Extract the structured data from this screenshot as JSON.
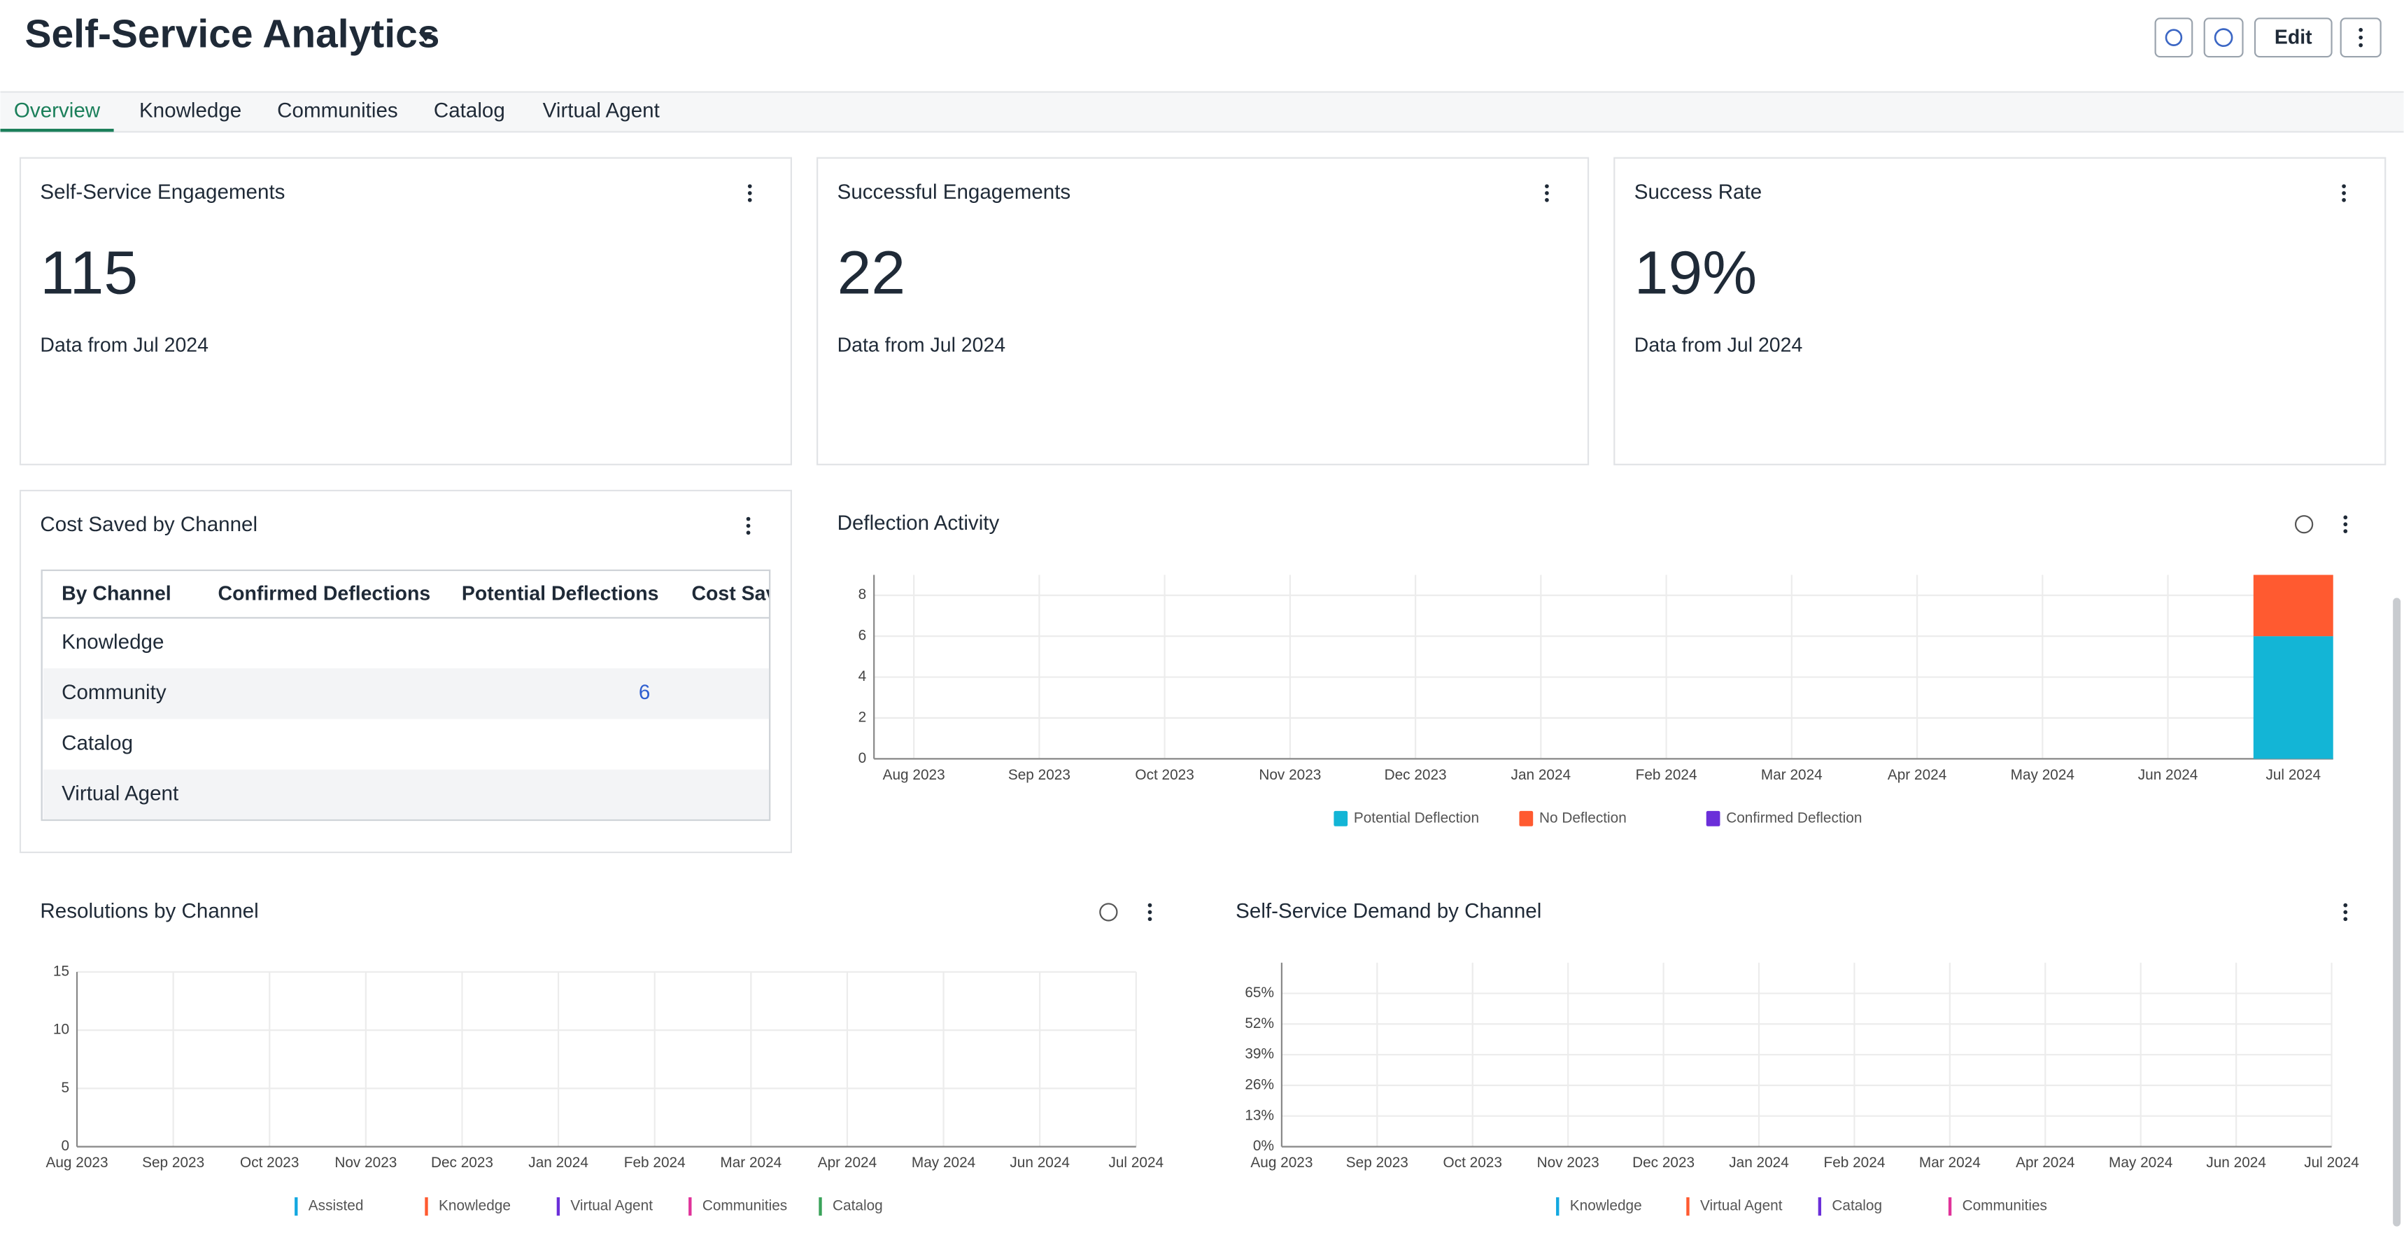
{
  "header": {
    "title": "Self-Service Analytics",
    "edit": "Edit"
  },
  "tabs": [
    "Overview",
    "Knowledge",
    "Communities",
    "Catalog",
    "Virtual Agent"
  ],
  "kpis": [
    {
      "title": "Self-Service Engagements",
      "value": 115,
      "note": "Data from Jul 2024"
    },
    {
      "title": "Successful Engagements",
      "value": 22,
      "note": "Data from Jul 2024"
    },
    {
      "title": "Success Rate",
      "value": 19,
      "value_label": "19%",
      "note": "Data from Jul 2024"
    }
  ],
  "cost_table": {
    "title": "Cost Saved by Channel",
    "columns": [
      "By Channel",
      "Confirmed Deflections",
      "Potential Deflections",
      "Cost Saved"
    ],
    "rows": [
      {
        "channel": "Knowledge"
      },
      {
        "channel": "Community",
        "potential": 6
      },
      {
        "channel": "Catalog"
      },
      {
        "channel": "Virtual Agent"
      }
    ]
  },
  "deflection_chart": {
    "type": "bar",
    "title": "Deflection Activity",
    "stacked": true,
    "categories": [
      "Aug 2023",
      "Sep 2023",
      "Oct 2023",
      "Nov 2023",
      "Dec 2023",
      "Jan 2024",
      "Feb 2024",
      "Mar 2024",
      "Apr 2024",
      "May 2024",
      "Jun 2024",
      "Jul 2024"
    ],
    "series": [
      {
        "name": "Potential Deflection",
        "color": "#13b5d6",
        "values": [
          0,
          0,
          0,
          0,
          0,
          0,
          0,
          0,
          0,
          0,
          0,
          6
        ]
      },
      {
        "name": "No Deflection",
        "color": "#ff5a30",
        "values": [
          0,
          0,
          0,
          0,
          0,
          0,
          0,
          0,
          0,
          0,
          0,
          3
        ]
      },
      {
        "name": "Confirmed Deflection",
        "color": "#6b2fd9",
        "values": [
          0,
          0,
          0,
          0,
          0,
          0,
          0,
          0,
          0,
          0,
          0,
          0
        ]
      }
    ],
    "ylim": [
      0,
      9
    ],
    "yticks": [
      0,
      2,
      4,
      6,
      8
    ],
    "grid": true
  },
  "resolutions_chart": {
    "type": "line",
    "title": "Resolutions by Channel",
    "categories": [
      "Aug 2023",
      "Sep 2023",
      "Oct 2023",
      "Nov 2023",
      "Dec 2023",
      "Jan 2024",
      "Feb 2024",
      "Mar 2024",
      "Apr 2024",
      "May 2024",
      "Jun 2024",
      "Jul 2024"
    ],
    "series": [
      {
        "name": "Assisted",
        "color": "#13a8e0",
        "values": [
          null,
          null,
          null,
          null,
          null,
          null,
          null,
          null,
          null,
          null,
          null,
          null
        ]
      },
      {
        "name": "Knowledge",
        "color": "#ff5a30",
        "values": [
          null,
          null,
          null,
          null,
          null,
          null,
          null,
          null,
          null,
          null,
          null,
          null
        ]
      },
      {
        "name": "Virtual Agent",
        "color": "#6b2fd9",
        "values": [
          null,
          null,
          null,
          null,
          null,
          null,
          null,
          null,
          null,
          null,
          null,
          null
        ]
      },
      {
        "name": "Communities",
        "color": "#e0339a",
        "values": [
          null,
          null,
          null,
          null,
          null,
          null,
          null,
          null,
          null,
          null,
          null,
          null
        ]
      },
      {
        "name": "Catalog",
        "color": "#3aa35a",
        "values": [
          null,
          null,
          null,
          null,
          null,
          null,
          null,
          null,
          null,
          null,
          null,
          null
        ]
      }
    ],
    "ylim": [
      0,
      15
    ],
    "yticks": [
      0,
      5,
      10,
      15
    ],
    "grid": true
  },
  "demand_chart": {
    "type": "line",
    "title": "Self-Service Demand by Channel",
    "categories": [
      "Aug 2023",
      "Sep 2023",
      "Oct 2023",
      "Nov 2023",
      "Dec 2023",
      "Jan 2024",
      "Feb 2024",
      "Mar 2024",
      "Apr 2024",
      "May 2024",
      "Jun 2024",
      "Jul 2024"
    ],
    "series": [
      {
        "name": "Knowledge",
        "color": "#13a8e0",
        "values": [
          null,
          null,
          null,
          null,
          null,
          null,
          null,
          null,
          null,
          null,
          null,
          null
        ]
      },
      {
        "name": "Virtual Agent",
        "color": "#ff5a30",
        "values": [
          null,
          null,
          null,
          null,
          null,
          null,
          null,
          null,
          null,
          null,
          null,
          null
        ]
      },
      {
        "name": "Catalog",
        "color": "#6b2fd9",
        "values": [
          null,
          null,
          null,
          null,
          null,
          null,
          null,
          null,
          null,
          null,
          null,
          null
        ]
      },
      {
        "name": "Communities",
        "color": "#e0339a",
        "values": [
          null,
          null,
          null,
          null,
          null,
          null,
          null,
          null,
          null,
          null,
          null,
          null
        ]
      }
    ],
    "ylim": [
      0,
      78
    ],
    "yticks": [
      {
        "value": 0,
        "label": "0%"
      },
      {
        "value": 13,
        "label": "13%"
      },
      {
        "value": 26,
        "label": "26%"
      },
      {
        "value": 39,
        "label": "39%"
      },
      {
        "value": 52,
        "label": "52%"
      },
      {
        "value": 65,
        "label": "65%"
      }
    ],
    "grid": true
  }
}
